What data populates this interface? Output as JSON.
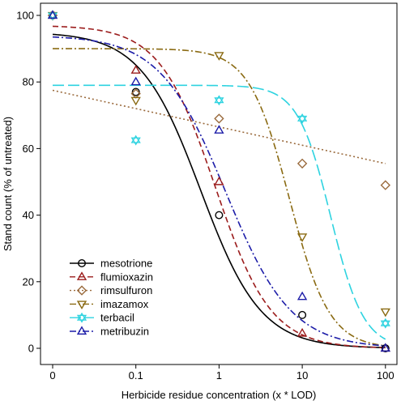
{
  "chart_data": {
    "type": "scatter",
    "title": "",
    "xlabel": "Herbicide residue concentration (x * LOD)",
    "ylabel": "Stand count (% of untreated)",
    "x_scale": "log",
    "x_ticks": [
      0,
      0.1,
      1,
      10,
      100
    ],
    "x_tick_labels": [
      "0",
      "0.1",
      "1",
      "10",
      "100"
    ],
    "ylim": [
      0,
      100
    ],
    "y_ticks": [
      0,
      20,
      40,
      60,
      80,
      100
    ],
    "y_tick_labels": [
      "0",
      "20",
      "40",
      "60",
      "80",
      "100"
    ],
    "grid": false,
    "legend": "bottom-left",
    "series": [
      {
        "name": "mesotrione",
        "color": "#000000",
        "marker": "circle",
        "line": "solid",
        "points": [
          [
            0,
            100
          ],
          [
            0.1,
            77
          ],
          [
            1,
            40
          ],
          [
            10,
            10
          ],
          [
            100,
            0
          ]
        ]
      },
      {
        "name": "flumioxazin",
        "color": "#9b1c1c",
        "marker": "triangle-up",
        "line": "dashed",
        "points": [
          [
            0,
            100
          ],
          [
            0.1,
            83.5
          ],
          [
            1,
            50
          ],
          [
            10,
            4.5
          ],
          [
            100,
            0
          ]
        ]
      },
      {
        "name": "rimsulfuron",
        "color": "#9a6a3c",
        "marker": "diamond",
        "line": "dotted",
        "points": [
          [
            0,
            100
          ],
          [
            0.1,
            76.5
          ],
          [
            1,
            69
          ],
          [
            10,
            55.5
          ],
          [
            100,
            49
          ]
        ]
      },
      {
        "name": "imazamox",
        "color": "#8a6a12",
        "marker": "triangle-down",
        "line": "dash-dot",
        "points": [
          [
            0,
            100
          ],
          [
            0.1,
            74.5
          ],
          [
            1,
            88
          ],
          [
            10,
            33.5
          ],
          [
            100,
            11
          ]
        ]
      },
      {
        "name": "terbacil",
        "color": "#2ed3e0",
        "marker": "star-of-david",
        "line": "long-dash",
        "points": [
          [
            0,
            100
          ],
          [
            0.1,
            62.5
          ],
          [
            1,
            74.5
          ],
          [
            10,
            69
          ],
          [
            100,
            7.5
          ]
        ]
      },
      {
        "name": "metribuzin",
        "color": "#1c1ca8",
        "marker": "triangle-up",
        "line": "dash-dot",
        "points": [
          [
            0,
            100
          ],
          [
            0.1,
            80
          ],
          [
            1,
            65.5
          ],
          [
            10,
            15.5
          ],
          [
            100,
            0
          ]
        ]
      }
    ],
    "curves": [
      {
        "series": "mesotrione",
        "model": "logistic",
        "upper": 95,
        "ec50": 0.6,
        "slope": 1.2
      },
      {
        "series": "flumioxazin",
        "model": "logistic",
        "upper": 97,
        "ec50": 0.9,
        "slope": 1.3
      },
      {
        "series": "rimsulfuron",
        "model": "linear-log",
        "intercept": 66.5,
        "slope_per_decade": -5.5
      },
      {
        "series": "imazamox",
        "model": "logistic",
        "upper": 90,
        "ec50": 7.0,
        "slope": 1.8
      },
      {
        "series": "terbacil",
        "model": "logistic",
        "upper": 79,
        "ec50": 22.0,
        "slope": 2.2
      },
      {
        "series": "metribuzin",
        "model": "logistic",
        "upper": 94,
        "ec50": 1.2,
        "slope": 1.1
      }
    ]
  }
}
